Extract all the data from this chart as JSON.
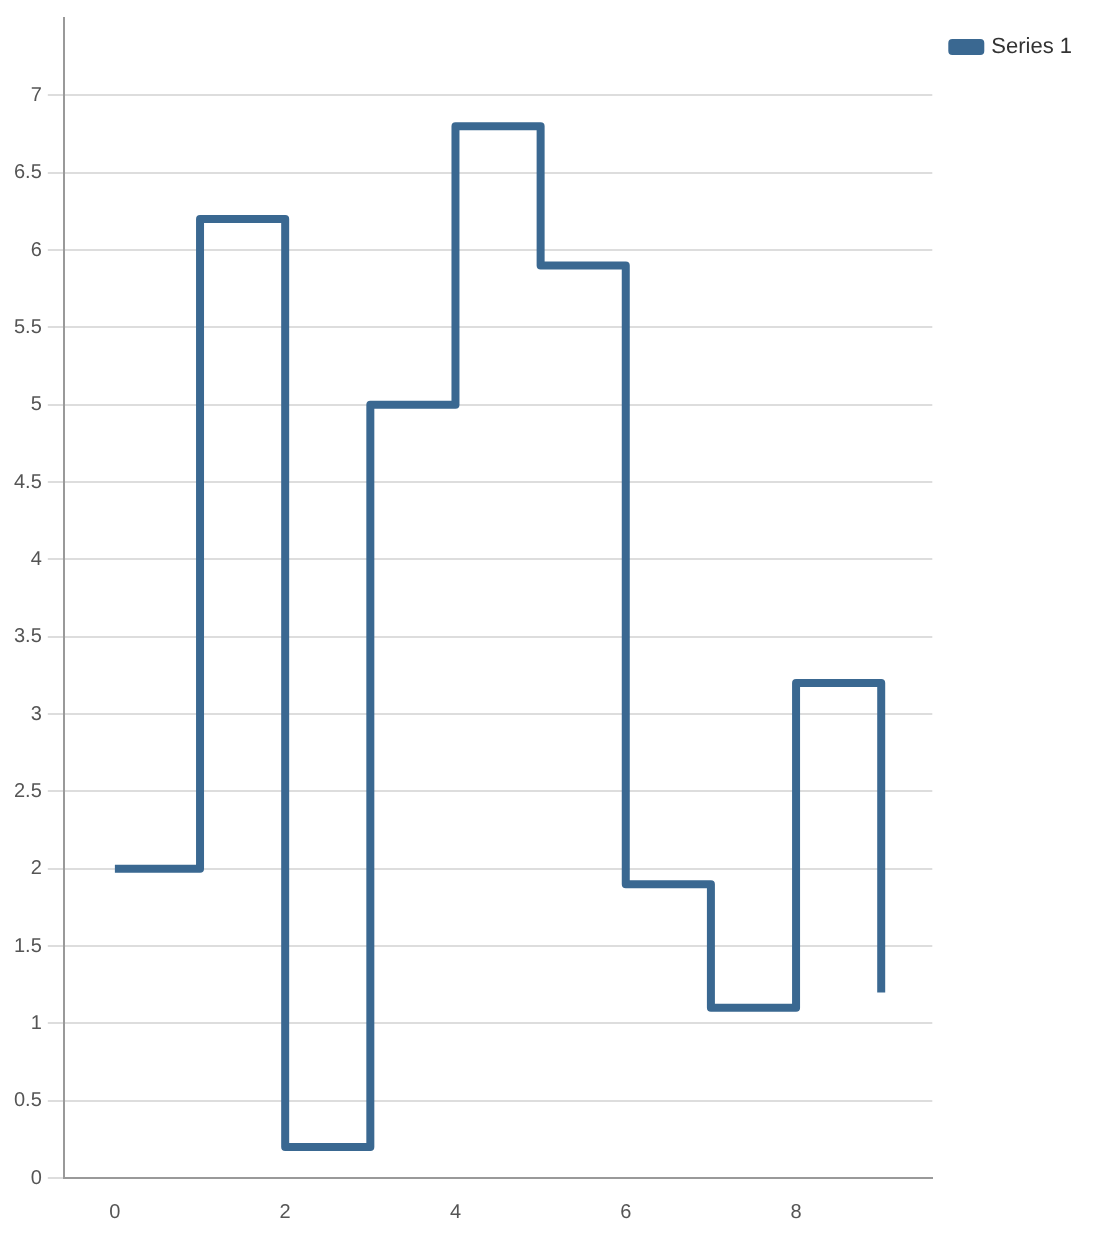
{
  "chart_data": {
    "type": "step",
    "x": [
      0,
      1,
      2,
      3,
      4,
      5,
      6,
      7,
      8,
      9
    ],
    "series": [
      {
        "name": "Series 1",
        "color": "#3a6891",
        "values": [
          2,
          6.2,
          0.2,
          5,
          6.8,
          5.9,
          1.9,
          1.1,
          3.2,
          1.2
        ]
      }
    ],
    "xlim": [
      -0.6,
      9.6
    ],
    "xticks": [
      0,
      2,
      4,
      6,
      8
    ],
    "ylim": [
      0,
      7.5
    ],
    "yticks": [
      0,
      0.5,
      1,
      1.5,
      2,
      2.5,
      3,
      3.5,
      4,
      4.5,
      5,
      5.5,
      6,
      6.5,
      7
    ],
    "grid": "y",
    "legend": "top right",
    "marker": "none",
    "line_style": "solid"
  }
}
